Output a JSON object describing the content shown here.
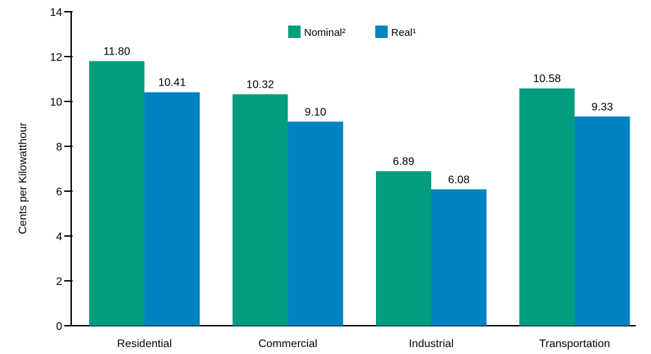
{
  "chart_data": {
    "type": "bar",
    "title": "",
    "xlabel": "",
    "ylabel": "Cents per Kilowatthour",
    "ylim": [
      0,
      14
    ],
    "yticks": [
      0,
      2,
      4,
      6,
      8,
      10,
      12,
      14
    ],
    "grid": false,
    "legend_position": "top",
    "categories": [
      "Residential",
      "Commercial",
      "Industrial",
      "Transportation"
    ],
    "series": [
      {
        "name": "Nominal²",
        "color": "#009e7f",
        "values": [
          11.8,
          10.32,
          6.89,
          10.58
        ],
        "labels": [
          "11.80",
          "10.32",
          "6.89",
          "10.58"
        ]
      },
      {
        "name": "Real¹",
        "color": "#0083c2",
        "values": [
          10.41,
          9.1,
          6.08,
          9.33
        ],
        "labels": [
          "10.41",
          "9.10",
          "6.08",
          "9.33"
        ]
      }
    ]
  }
}
